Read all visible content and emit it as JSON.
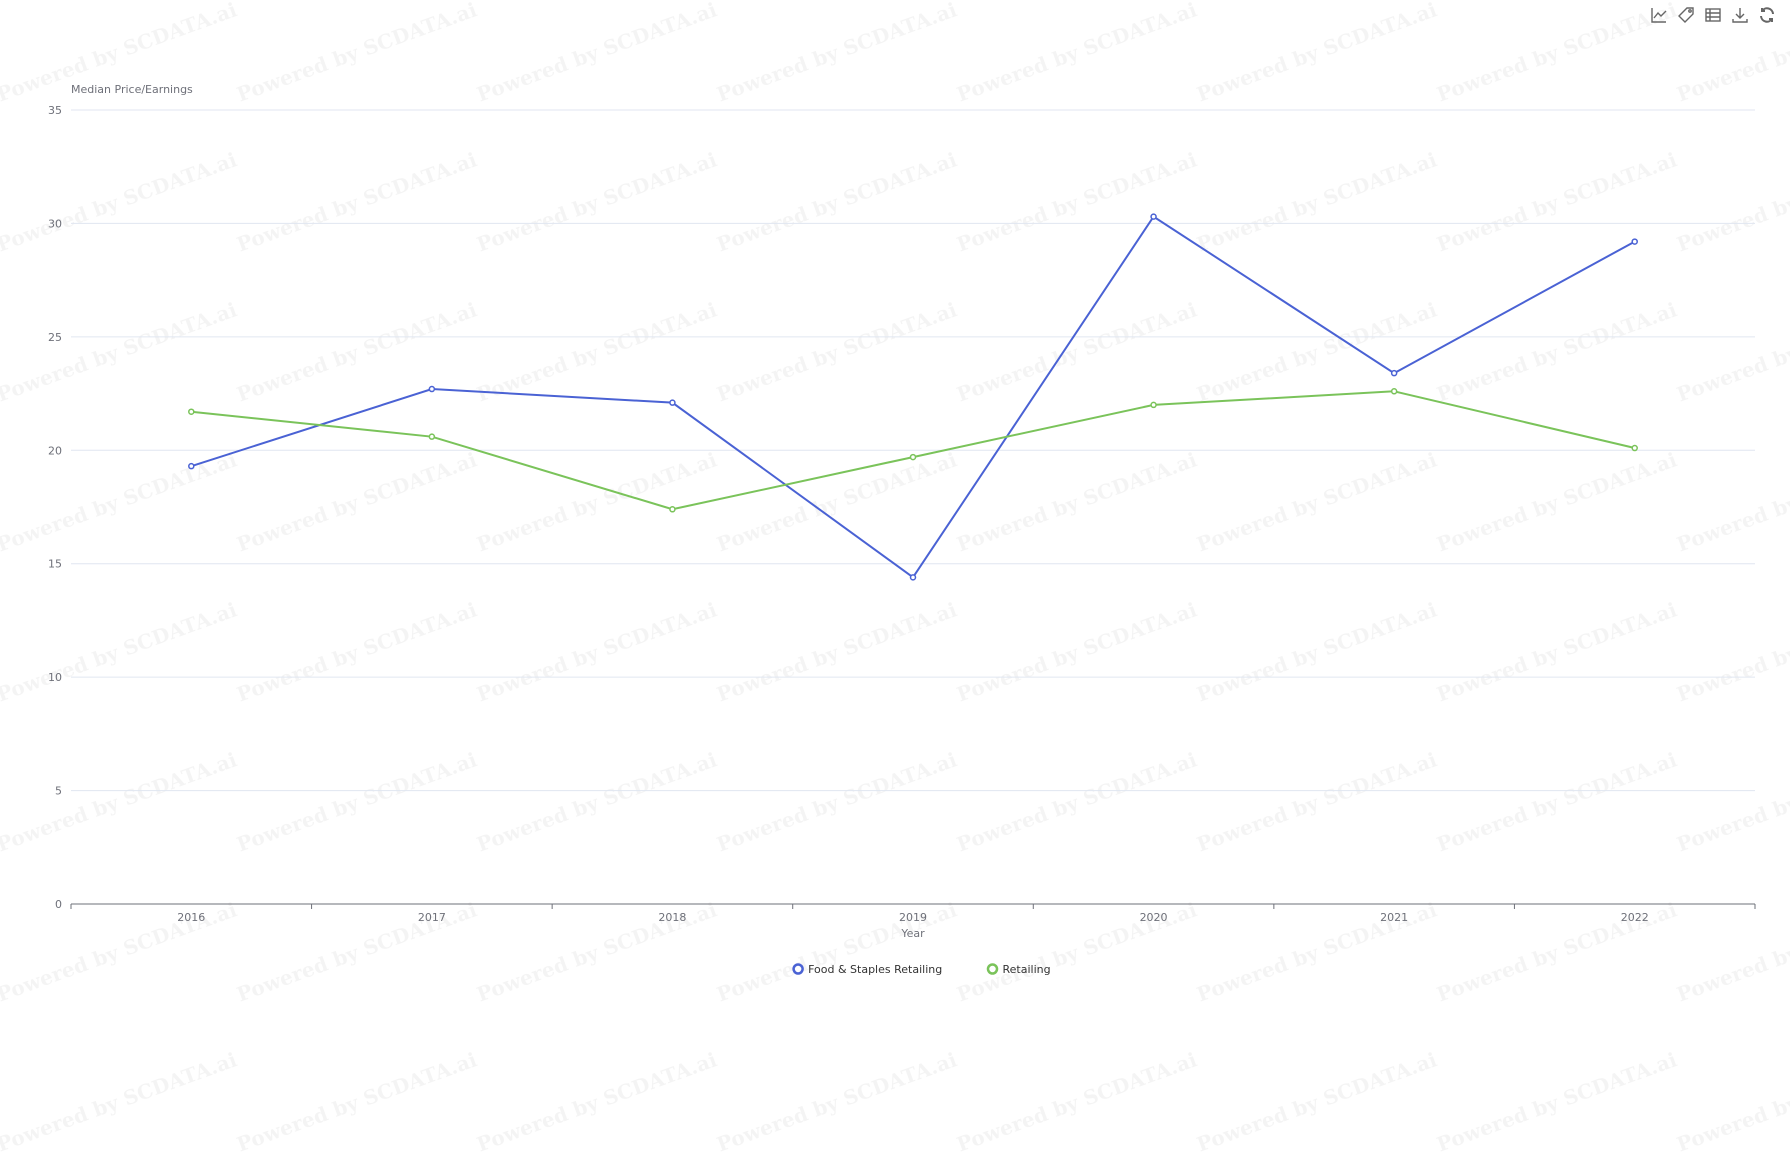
{
  "watermark": "Powered by SCDATA.ai",
  "toolbar": [
    {
      "icon": "line-chart-icon",
      "label": "Line chart"
    },
    {
      "icon": "tag-icon",
      "label": "Tag"
    },
    {
      "icon": "data-view-icon",
      "label": "Data view"
    },
    {
      "icon": "download-icon",
      "label": "Save as image"
    },
    {
      "icon": "refresh-icon",
      "label": "Restore"
    }
  ],
  "chart_data": {
    "type": "line",
    "title": "",
    "xlabel": "Year",
    "ylabel": "Median Price/Earnings",
    "categories": [
      "2016",
      "2017",
      "2018",
      "2019",
      "2020",
      "2021",
      "2022"
    ],
    "ylim": [
      0,
      35
    ],
    "yticks": [
      0,
      5,
      10,
      15,
      20,
      25,
      30,
      35
    ],
    "grid": true,
    "legend": "bottom-center",
    "series": [
      {
        "name": "Food & Staples Retailing",
        "color": "#4a62d4",
        "values": [
          19.3,
          22.7,
          22.1,
          14.4,
          30.3,
          23.4,
          29.2
        ]
      },
      {
        "name": "Retailing",
        "color": "#7ac35a",
        "values": [
          21.7,
          20.6,
          17.4,
          19.7,
          22.0,
          22.6,
          20.1
        ]
      }
    ]
  }
}
